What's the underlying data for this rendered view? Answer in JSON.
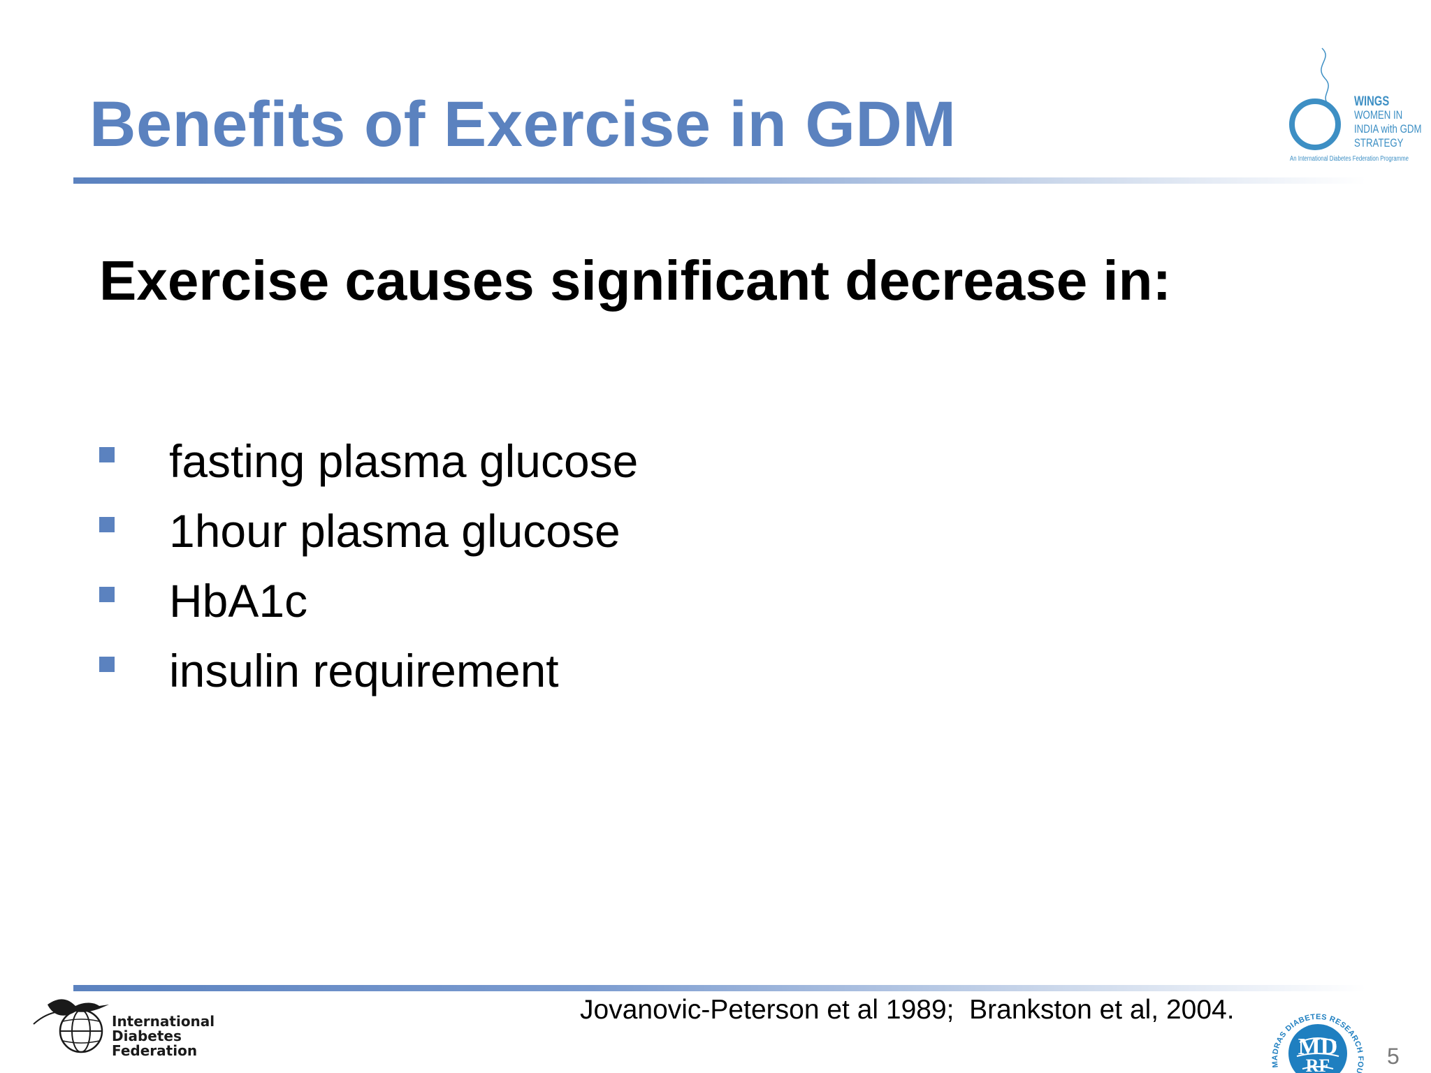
{
  "slide": {
    "title": "Benefits of Exercise in GDM",
    "heading": "Exercise causes significant decrease in:",
    "bullets": [
      "fasting plasma glucose",
      "1hour plasma glucose",
      "HbA1c",
      "insulin requirement"
    ],
    "citation": "Jovanovic-Peterson et al 1989;  Brankston et al, 2004.",
    "page_number": "5"
  },
  "logos": {
    "wings": {
      "lines": [
        "WINGS",
        "WOMEN IN",
        "INDIA with GDM",
        "STRATEGY"
      ],
      "tagline": "An International Diabetes Federation Programme"
    },
    "idf": {
      "lines": [
        "International",
        "Diabetes",
        "Federation"
      ]
    },
    "mdrf": {
      "ring_text": "MADRAS DIABETES RESEARCH FOUNDATION",
      "letters": "MDRF"
    }
  },
  "colors": {
    "title": "#5b82bf",
    "bullet": "#5b82bf",
    "logo_blue": "#3d8fc4",
    "mdrf_blue": "#1f7fc0"
  }
}
